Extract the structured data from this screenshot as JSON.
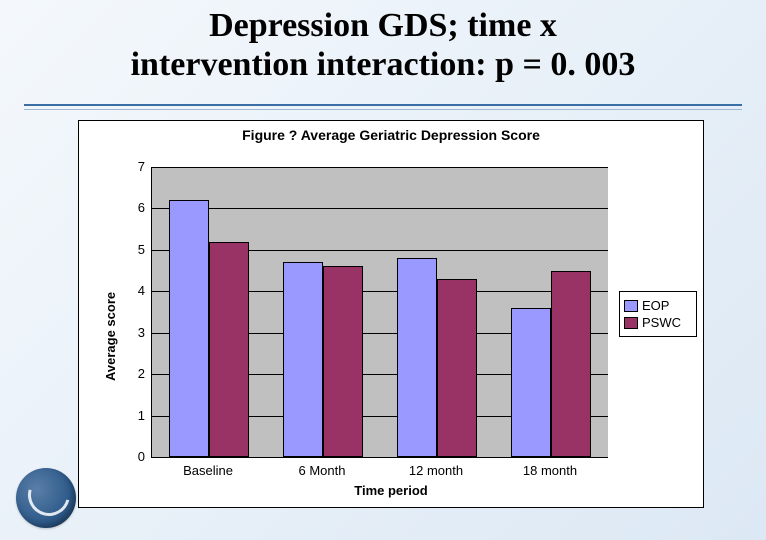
{
  "title_line1": "Depression GDS; time x",
  "title_line2": "intervention interaction: p = 0. 003",
  "chart": {
    "type": "bar",
    "title": "Figure ?  Average Geriatric Depression Score",
    "x_axis_title": "Time period",
    "y_axis_title": "Average score",
    "y_min": 0,
    "y_max": 7,
    "y_step": 1,
    "plot_background": "#c0c0c0",
    "grid_color": "#000000",
    "categories": [
      "Baseline",
      "6 Month",
      "12 month",
      "18 month"
    ],
    "series": [
      {
        "name": "EOP",
        "color": "#9999ff",
        "values": [
          6.2,
          4.7,
          4.8,
          3.6
        ]
      },
      {
        "name": "PSWC",
        "color": "#993366",
        "values": [
          5.2,
          4.6,
          4.3,
          4.5
        ]
      }
    ],
    "bar_group_width": 0.7,
    "title_fontsize": 14,
    "axis_label_fontsize": 13,
    "tick_fontsize": 13
  }
}
